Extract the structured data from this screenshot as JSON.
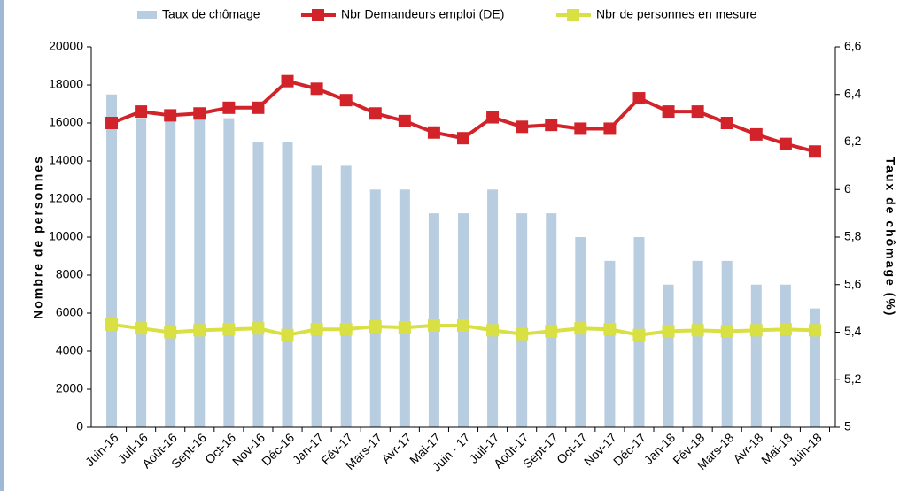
{
  "chart_data": {
    "type": "bar-line",
    "categories": [
      "Juin-16",
      "Juil-16",
      "Août-16",
      "Sept-16",
      "Oct-16",
      "Nov-16",
      "Déc-16",
      "Jan-17",
      "Fév-17",
      "Mars-17",
      "Avr-17",
      "Mai-17",
      "Juin - 17",
      "Juil-17",
      "Août-17",
      "Sept-17",
      "Oct-17",
      "Nov-17",
      "Déc-17",
      "Jan-18",
      "Fév-18",
      "Mars-18",
      "Avr-18",
      "Mai-18",
      "Juin-18"
    ],
    "series": [
      {
        "name": "Taux de chômage",
        "kind": "bar",
        "axis": "y2",
        "color": "#b8cde0",
        "values": [
          6.4,
          6.3,
          6.3,
          6.3,
          6.3,
          6.2,
          6.2,
          6.1,
          6.1,
          6.0,
          6.0,
          5.9,
          5.9,
          6.0,
          5.9,
          5.9,
          5.8,
          5.7,
          5.8,
          5.6,
          5.7,
          5.7,
          5.6,
          5.6,
          5.5
        ]
      },
      {
        "name": "Nbr Demandeurs emploi (DE)",
        "kind": "line",
        "color": "#d2232a",
        "values": [
          16000,
          16600,
          16400,
          16500,
          16800,
          16800,
          18200,
          17800,
          17200,
          16500,
          16100,
          15500,
          15200,
          16300,
          15800,
          15900,
          15700,
          15700,
          17300,
          16600,
          16600,
          16000,
          15400,
          14900,
          14500
        ]
      },
      {
        "name": "Nbr de personnes en mesure",
        "kind": "line",
        "color": "#d9e044",
        "values": [
          5400,
          5200,
          5000,
          5100,
          5150,
          5200,
          4850,
          5150,
          5150,
          5300,
          5250,
          5350,
          5350,
          5100,
          4900,
          5050,
          5200,
          5150,
          4850,
          5050,
          5100,
          5050,
          5100,
          5150,
          5100
        ]
      }
    ],
    "ylabel": "Nombre de personnes",
    "y2label": "Taux de chômage (%)",
    "ylim": [
      0,
      20000
    ],
    "yticks": [
      0,
      2000,
      4000,
      6000,
      8000,
      10000,
      12000,
      14000,
      16000,
      18000,
      20000
    ],
    "y2lim": [
      5,
      6.6
    ],
    "y2ticks": [
      5,
      {
        "value": 5.2,
        "label": "5,2"
      },
      {
        "value": 5.4,
        "label": "5,4"
      },
      {
        "value": 5.6,
        "label": "5,6"
      },
      {
        "value": 5.8,
        "label": "5,8"
      },
      6,
      {
        "value": 6.2,
        "label": "6,2"
      },
      {
        "value": 6.4,
        "label": "6,4"
      },
      {
        "value": 6.6,
        "label": "6,6"
      }
    ]
  }
}
